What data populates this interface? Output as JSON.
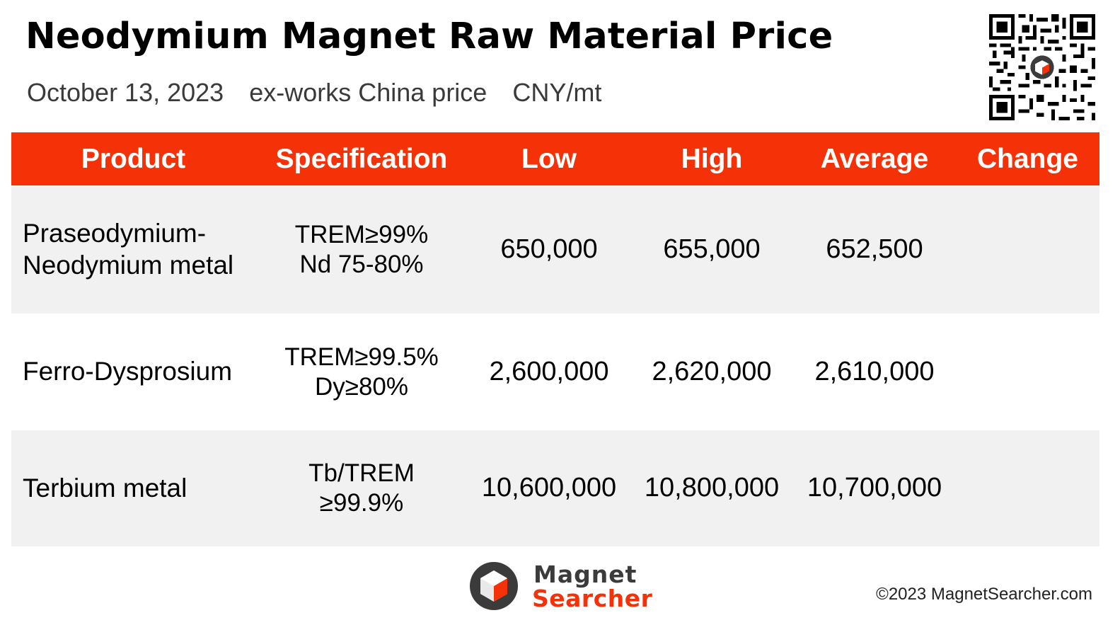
{
  "header": {
    "title": "Neodymium Magnet Raw Material Price",
    "date": "October 13, 2023",
    "basis": "ex-works China price",
    "unit": "CNY/mt"
  },
  "table": {
    "columns": [
      "Product",
      "Specification",
      "Low",
      "High",
      "Average",
      "Change"
    ],
    "rows": [
      {
        "product_line1": "Praseodymium-",
        "product_line2": "Neodymium metal",
        "spec_line1": "TREM≥99%",
        "spec_line2": "Nd 75-80%",
        "low": "650,000",
        "high": "655,000",
        "average": "652,500",
        "change": ""
      },
      {
        "product_line1": "Ferro-Dysprosium",
        "product_line2": "",
        "spec_line1": "TREM≥99.5%",
        "spec_line2": "Dy≥80%",
        "low": "2,600,000",
        "high": "2,620,000",
        "average": "2,610,000",
        "change": ""
      },
      {
        "product_line1": "Terbium metal",
        "product_line2": "",
        "spec_line1": "Tb/TREM",
        "spec_line2": "≥99.9%",
        "low": "10,600,000",
        "high": "10,800,000",
        "average": "10,700,000",
        "change": ""
      }
    ]
  },
  "footer": {
    "logo_line1": "Magnet",
    "logo_line2": "Searcher",
    "copyright": "©2023 MagnetSearcher.com"
  },
  "colors": {
    "accent": "#f53207",
    "row_shade": "#f1f1f1",
    "logo_dark": "#3b3b3b"
  },
  "icons": {
    "qr": "qr-code-icon",
    "logo": "magnet-searcher-logo-icon"
  }
}
